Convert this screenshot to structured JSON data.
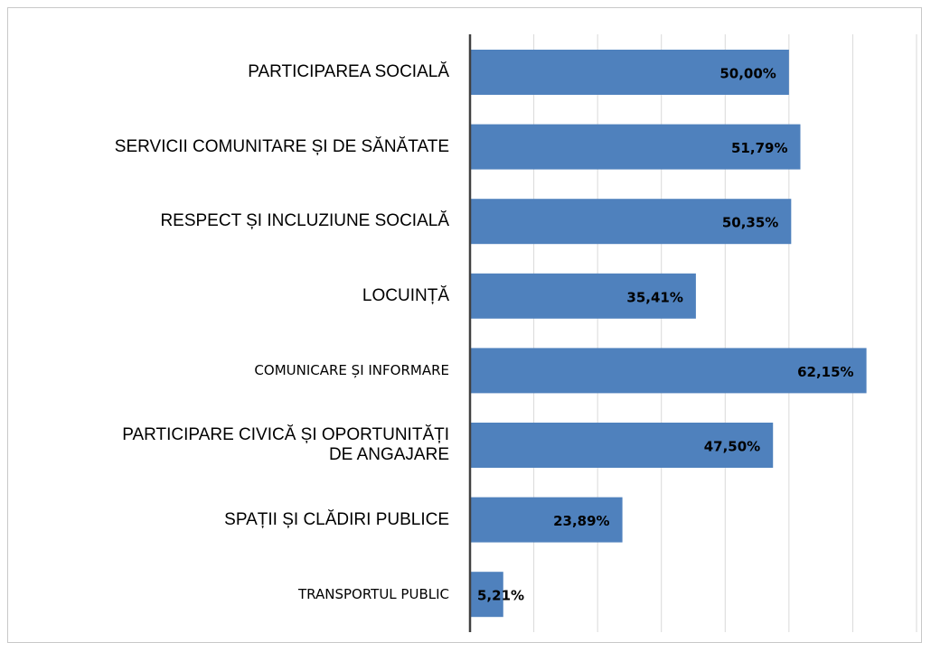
{
  "chart_data": {
    "type": "bar",
    "orientation": "horizontal",
    "categories": [
      "PARTICIPAREA SOCIALĂ",
      "SERVICII COMUNITARE ȘI DE SĂNĂTATE",
      "RESPECT ȘI INCLUZIUNE SOCIALĂ",
      "LOCUINȚĂ",
      "COMUNICARE ȘI INFORMARE",
      "PARTICIPARE CIVICĂ ȘI OPORTUNITĂȚI\nDE ANGAJARE",
      "SPAȚII ȘI CLĂDIRI PUBLICE",
      "TRANSPORTUL PUBLIC"
    ],
    "values": [
      50.0,
      51.79,
      50.35,
      35.41,
      62.15,
      47.5,
      23.89,
      5.21
    ],
    "value_labels": [
      "50,00%",
      "51,79%",
      "50,35%",
      "35,41%",
      "62,15%",
      "47,50%",
      "23,89%",
      "5,21%"
    ],
    "color": "#4f81bd",
    "xlim": [
      0,
      70
    ],
    "xticks": [
      0,
      10,
      20,
      30,
      40,
      50,
      60,
      70
    ],
    "grid": true
  }
}
